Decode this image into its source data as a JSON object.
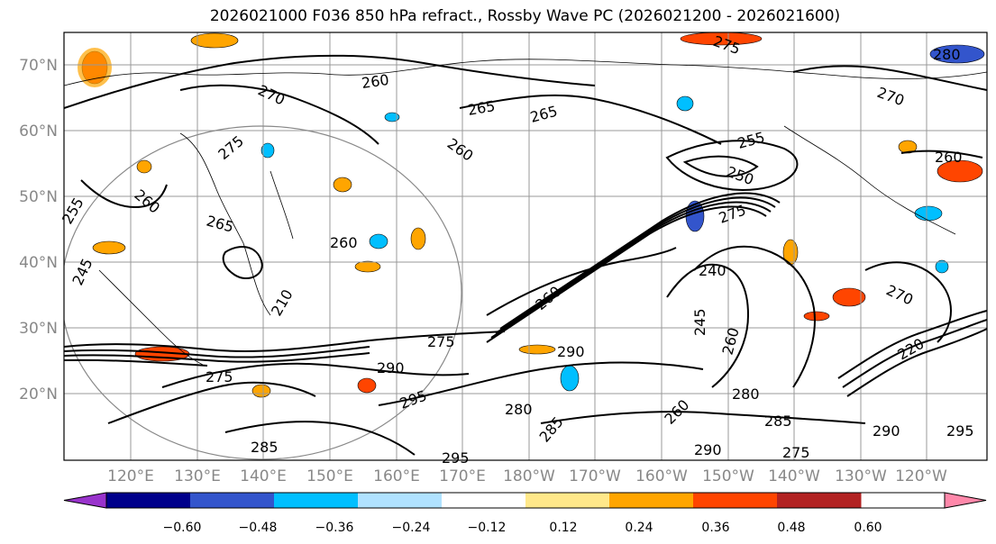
{
  "title": "2026021000 F036 850 hPa refract., Rossby Wave PC (2026021200 - 2026021600)",
  "lat_labels": [
    "70°N",
    "60°N",
    "50°N",
    "40°N",
    "30°N",
    "20°N"
  ],
  "lon_labels": [
    "120°E",
    "130°E",
    "140°E",
    "150°E",
    "160°E",
    "170°E",
    "180°W",
    "170°W",
    "160°W",
    "150°W",
    "140°W",
    "130°W",
    "120°W"
  ],
  "contour_labels": [
    "275",
    "280",
    "260",
    "270",
    "265",
    "265",
    "260",
    "270",
    "275",
    "260",
    "250",
    "255",
    "260",
    "275",
    "260",
    "265",
    "255",
    "245",
    "260",
    "240",
    "210",
    "245",
    "270",
    "275",
    "290",
    "275",
    "290",
    "280",
    "285",
    "290",
    "295",
    "280",
    "285",
    "295",
    "260",
    "220",
    "260",
    "295",
    "285",
    "275",
    "290"
  ],
  "colorbar": {
    "ticks": [
      "−0.60",
      "−0.48",
      "−0.36",
      "−0.24",
      "−0.12",
      "0.12",
      "0.24",
      "0.36",
      "0.48",
      "0.60"
    ],
    "colors": [
      "#9933cc",
      "#00008b",
      "#3355cc",
      "#00bfff",
      "#b0e2ff",
      "#ffffff",
      "#ffe88a",
      "#ffa500",
      "#ff4500",
      "#b22222",
      "#ff88aa"
    ]
  }
}
